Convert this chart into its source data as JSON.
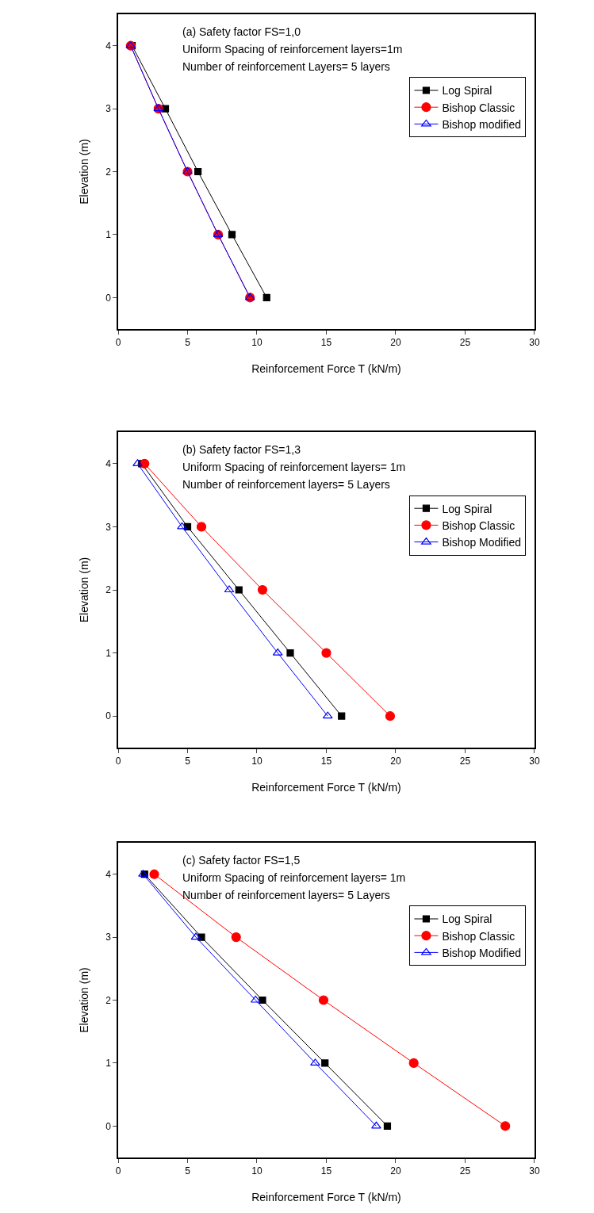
{
  "chart_data": [
    {
      "type": "line",
      "annotations": [
        "(a) Safety factor FS=1,0",
        "Uniform Spacing of reinforcement layers=1m",
        "Number of reinforcement Layers= 5 layers"
      ],
      "xlabel": "Reinforcement Force T (kN/m)",
      "ylabel": "Elevation (m)",
      "xlim": [
        0,
        30
      ],
      "xticks": [
        0,
        5,
        10,
        15,
        20,
        25,
        30
      ],
      "ylim": [
        -0.5,
        4.5
      ],
      "yticks": [
        0,
        1,
        2,
        3,
        4
      ],
      "legend": "top right",
      "series": [
        {
          "name": "Log Spiral",
          "color": "#000000",
          "marker": "square",
          "x": [
            1.0,
            3.4,
            5.75,
            8.2,
            10.7
          ],
          "values": [
            4,
            3,
            2,
            1,
            0
          ]
        },
        {
          "name": "Bishop Classic",
          "color": "#ff0000",
          "marker": "circle",
          "x": [
            0.9,
            2.9,
            5.0,
            7.2,
            9.5
          ],
          "values": [
            4,
            3,
            2,
            1,
            0
          ]
        },
        {
          "name": "Bishop modified",
          "color": "#0000ff",
          "marker": "triangle",
          "x": [
            0.9,
            2.9,
            5.0,
            7.2,
            9.5
          ],
          "values": [
            4,
            3,
            2,
            1,
            0
          ]
        }
      ]
    },
    {
      "type": "line",
      "annotations": [
        "(b) Safety factor FS=1,3",
        "Uniform Spacing of reinforcement layers= 1m",
        "Number of reinforcement layers= 5 Layers"
      ],
      "xlabel": "Reinforcement Force T (kN/m)",
      "ylabel": "Elevation (m)",
      "xlim": [
        0,
        30
      ],
      "xticks": [
        0,
        5,
        10,
        15,
        20,
        25,
        30
      ],
      "ylim": [
        -0.5,
        4.5
      ],
      "yticks": [
        0,
        1,
        2,
        3,
        4
      ],
      "legend": "top right",
      "series": [
        {
          "name": "Log Spiral",
          "color": "#000000",
          "marker": "square",
          "x": [
            1.7,
            5.0,
            8.7,
            12.4,
            16.1
          ],
          "values": [
            4,
            3,
            2,
            1,
            0
          ]
        },
        {
          "name": "Bishop Classic",
          "color": "#ff0000",
          "marker": "circle",
          "x": [
            1.9,
            6.0,
            10.4,
            15.0,
            19.6
          ],
          "values": [
            4,
            3,
            2,
            1,
            0
          ]
        },
        {
          "name": "Bishop Modified",
          "color": "#0000ff",
          "marker": "triangle",
          "x": [
            1.4,
            4.6,
            8.0,
            11.5,
            15.1
          ],
          "values": [
            4,
            3,
            2,
            1,
            0
          ]
        }
      ]
    },
    {
      "type": "line",
      "annotations": [
        "(c) Safety factor FS=1,5",
        "Uniform Spacing of reinforcement layers= 1m",
        "Number of reinforcement layers= 5 Layers"
      ],
      "xlabel": "Reinforcement Force T (kN/m)",
      "ylabel": "Elevation (m)",
      "xlim": [
        0,
        30
      ],
      "xticks": [
        0,
        5,
        10,
        15,
        20,
        25,
        30
      ],
      "ylim": [
        -0.5,
        4.5
      ],
      "yticks": [
        0,
        1,
        2,
        3,
        4
      ],
      "legend": "top right",
      "series": [
        {
          "name": "Log Spiral",
          "color": "#000000",
          "marker": "square",
          "x": [
            1.9,
            6.0,
            10.4,
            14.9,
            19.4
          ],
          "values": [
            4,
            3,
            2,
            1,
            0
          ]
        },
        {
          "name": "Bishop Classic",
          "color": "#ff0000",
          "marker": "circle",
          "x": [
            2.6,
            8.5,
            14.8,
            21.3,
            27.9
          ],
          "values": [
            4,
            3,
            2,
            1,
            0
          ]
        },
        {
          "name": "Bishop Modified",
          "color": "#0000ff",
          "marker": "triangle",
          "x": [
            1.8,
            5.6,
            9.9,
            14.2,
            18.6
          ],
          "values": [
            4,
            3,
            2,
            1,
            0
          ]
        }
      ]
    }
  ]
}
